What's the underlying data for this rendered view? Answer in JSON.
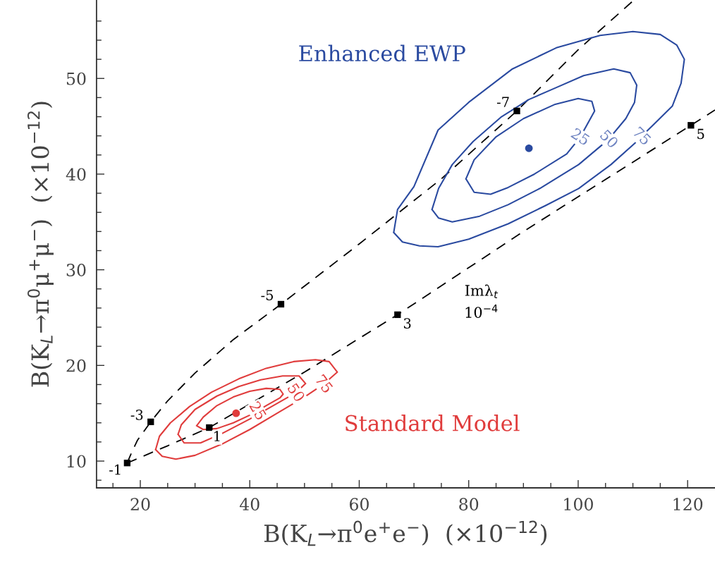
{
  "chart_data": {
    "type": "line",
    "xlabel": "B(K$_{L}$→π$^{0}$e$^{+}$e$^{−}$)  (×10$^{−12}$)",
    "ylabel": "B(K$_{L}$→π$^{0}$μ$^{+}$μ$^{−}$)  (×10$^{−12}$)",
    "xlim": [
      12,
      125
    ],
    "ylim": [
      7.2,
      58.2
    ],
    "xticks": [
      {
        "value": 15,
        "label": null
      },
      20,
      {
        "value": 25,
        "label": null
      },
      {
        "value": 30,
        "label": null
      },
      {
        "value": 35,
        "label": null
      },
      40,
      {
        "value": 45,
        "label": null
      },
      {
        "value": 50,
        "label": null
      },
      {
        "value": 55,
        "label": null
      },
      60,
      {
        "value": 65,
        "label": null
      },
      {
        "value": 70,
        "label": null
      },
      {
        "value": 75,
        "label": null
      },
      80,
      {
        "value": 85,
        "label": null
      },
      {
        "value": 90,
        "label": null
      },
      {
        "value": 95,
        "label": null
      },
      100,
      {
        "value": 105,
        "label": null
      },
      {
        "value": 110,
        "label": null
      },
      {
        "value": 115,
        "label": null
      },
      120
    ],
    "yticks": [
      {
        "value": 8,
        "label": null
      },
      10,
      {
        "value": 12,
        "label": null
      },
      {
        "value": 14,
        "label": null
      },
      {
        "value": 16,
        "label": null
      },
      {
        "value": 18,
        "label": null
      },
      20,
      {
        "value": 22,
        "label": null
      },
      {
        "value": 24,
        "label": null
      },
      {
        "value": 26,
        "label": null
      },
      {
        "value": 28,
        "label": null
      },
      30,
      {
        "value": 32,
        "label": null
      },
      {
        "value": 34,
        "label": null
      },
      {
        "value": 36,
        "label": null
      },
      {
        "value": 38,
        "label": null
      },
      40,
      {
        "value": 42,
        "label": null
      },
      {
        "value": 44,
        "label": null
      },
      {
        "value": 46,
        "label": null
      },
      {
        "value": 48,
        "label": null
      },
      50,
      {
        "value": 52,
        "label": null
      },
      {
        "value": 54,
        "label": null
      },
      {
        "value": 56,
        "label": null
      }
    ],
    "series": [
      {
        "line_style": "dashed",
        "color": "#000000",
        "x": [
          17.6,
          18.5,
          19.5,
          21.9,
          25,
          30,
          37,
          45.7,
          60,
          75,
          88.8,
          100,
          110
        ],
        "values": [
          9.8,
          11,
          12.2,
          14.1,
          16.3,
          19.2,
          22.7,
          26.4,
          32.7,
          39.5,
          46.6,
          53,
          58.1
        ]
      },
      {
        "line_style": "dashed",
        "color": "#000000",
        "x": [
          17.6,
          25,
          32.6,
          50,
          67,
          90,
          120.6,
          125
        ],
        "values": [
          9.8,
          11.6,
          13.5,
          19.3,
          25.3,
          34,
          45.1,
          46.7
        ]
      },
      {
        "type": "scatter",
        "marker": "square",
        "color": "#000000",
        "x": [
          17.6,
          21.9,
          32.6,
          45.7,
          67.0,
          88.8,
          120.6
        ],
        "values": [
          9.8,
          14.1,
          13.5,
          26.4,
          25.3,
          46.6,
          45.1
        ]
      },
      {
        "type": "scatter",
        "marker": "circle",
        "color": "#e03c3c",
        "name": "Standard Model",
        "x": [
          37.5
        ],
        "values": [
          15.0
        ]
      },
      {
        "type": "scatter",
        "marker": "circle",
        "color": "#2a4aa0",
        "name": "Enhanced EWP",
        "x": [
          91.0
        ],
        "values": [
          42.7
        ]
      }
    ],
    "annotations": [
      {
        "text": "-1",
        "x": 17.6,
        "y": 9.8
      },
      {
        "text": "-3",
        "x": 21.9,
        "y": 14.1
      },
      {
        "text": "1",
        "x": 32.6,
        "y": 13.5
      },
      {
        "text": "-5",
        "x": 45.7,
        "y": 26.4
      },
      {
        "text": "3",
        "x": 67.0,
        "y": 25.3
      },
      {
        "text": "-7",
        "x": 88.8,
        "y": 46.6
      },
      {
        "text": "5",
        "x": 120.6,
        "y": 45.1
      },
      "75",
      "50",
      "25",
      "75",
      "50",
      "25",
      "Imλ$_{t}$",
      "10$^{−4}$"
    ]
  }
}
